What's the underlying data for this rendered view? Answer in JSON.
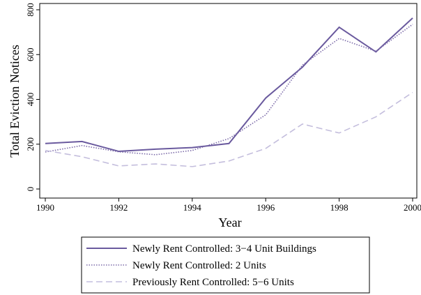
{
  "chart_data": {
    "type": "line",
    "x_label": "Year",
    "y_label": "Total Eviction Notices",
    "x": [
      1990,
      1991,
      1992,
      1993,
      1994,
      1995,
      1996,
      1997,
      1998,
      1999,
      2000
    ],
    "xlim": [
      1990,
      2000
    ],
    "xticks": [
      1990,
      1992,
      1994,
      1996,
      1998,
      2000
    ],
    "ylim": [
      0,
      800
    ],
    "yticks": [
      0,
      200,
      400,
      600,
      800
    ],
    "series": [
      {
        "name": "Newly Rent Controlled: 3−4 Unit Buildings",
        "color": "#6a5a9e",
        "style": "solid",
        "values": [
          203,
          212,
          168,
          178,
          185,
          203,
          406,
          544,
          722,
          612,
          763
        ]
      },
      {
        "name": "Newly Rent Controlled: 2 Units",
        "color": "#7b6aa8",
        "style": "dotted",
        "values": [
          165,
          194,
          166,
          153,
          172,
          225,
          331,
          553,
          672,
          615,
          735
        ]
      },
      {
        "name": "Previously Rent Controlled: 5−6 Units",
        "color": "#c4bedd",
        "style": "dashed",
        "values": [
          172,
          144,
          103,
          112,
          100,
          125,
          181,
          290,
          250,
          322,
          431
        ]
      }
    ]
  }
}
